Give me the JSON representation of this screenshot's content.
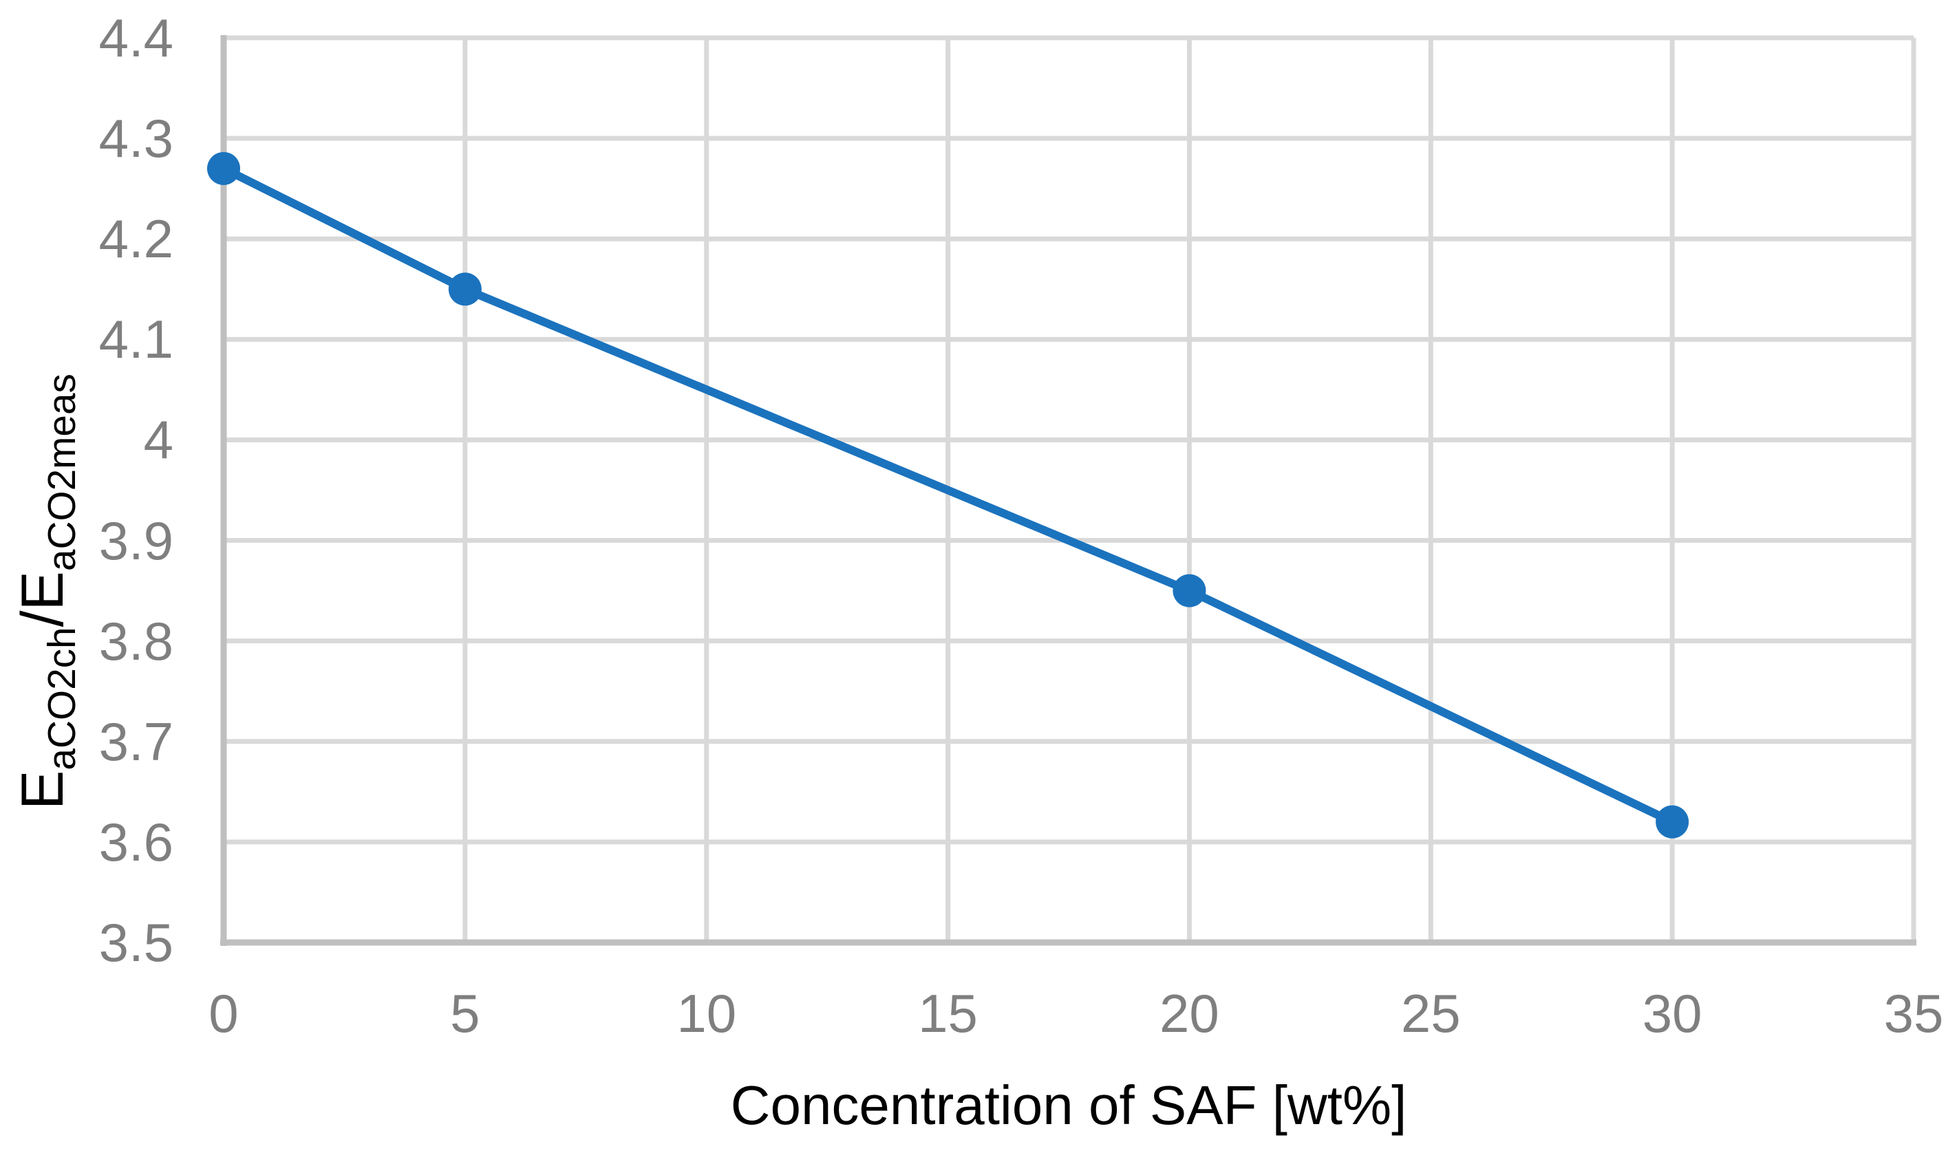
{
  "chart_data": {
    "type": "line",
    "title": "",
    "xlabel": "Concentration of SAF [wt%]",
    "ylabel_text": "EaCO2ch/EaCO2meas",
    "ylabel": {
      "base1": "E",
      "sub1": "aCO2ch",
      "divider": "/",
      "base2": "E",
      "sub2": "aCO2meas"
    },
    "x": [
      0,
      5,
      20,
      30
    ],
    "y": [
      4.27,
      4.15,
      3.85,
      3.62
    ],
    "xlim": [
      0,
      35
    ],
    "ylim": [
      3.5,
      4.4
    ],
    "x_ticks": [
      0,
      5,
      10,
      15,
      20,
      25,
      30,
      35
    ],
    "x_tick_labels": [
      "0",
      "5",
      "10",
      "15",
      "20",
      "25",
      "30",
      "35"
    ],
    "y_ticks": [
      3.5,
      3.6,
      3.7,
      3.8,
      3.9,
      4.0,
      4.1,
      4.2,
      4.3,
      4.4
    ],
    "y_tick_labels": [
      "3.5",
      "3.6",
      "3.7",
      "3.8",
      "3.9",
      "4",
      "4.1",
      "4.2",
      "4.3",
      "4.4"
    ],
    "grid": true,
    "legend": false,
    "marker": "circle",
    "colors": {
      "series": "#1b73be",
      "gridline": "#d9d9d9",
      "axis_line": "#bfbfbf",
      "tick_label": "#7f7f7f",
      "axis_title": "#000000",
      "background": "#ffffff"
    }
  }
}
